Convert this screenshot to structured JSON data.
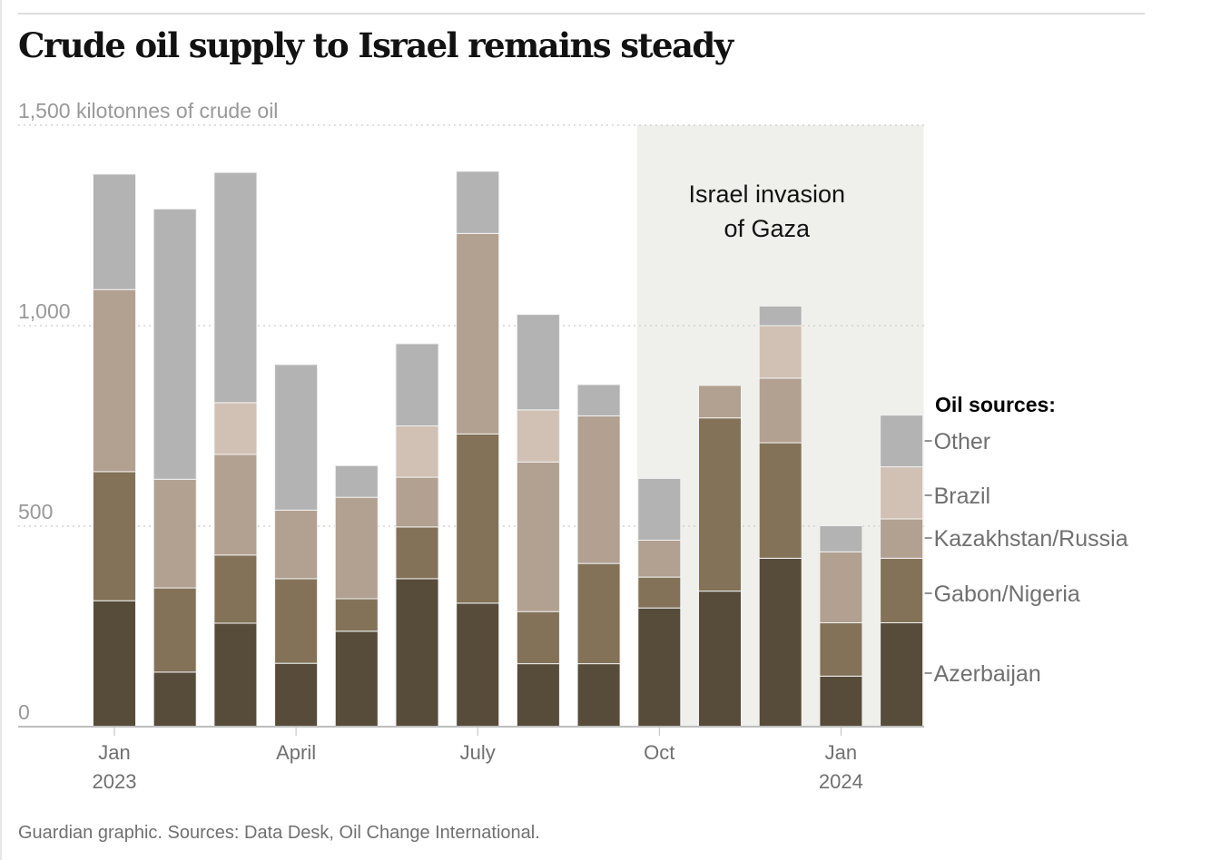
{
  "header": {
    "title": "Crude oil supply to Israel remains steady"
  },
  "footer": {
    "source": "Guardian graphic. Sources: Data Desk, Oil Change International."
  },
  "chart_data": {
    "type": "bar",
    "stacked": true,
    "title": "Crude oil supply to Israel remains steady",
    "ylabel": "kilotonnes of crude oil",
    "y_unit_label": "1,500 kilotonnes of crude oil",
    "ylim": [
      0,
      1500
    ],
    "yticks": [
      {
        "value": 0,
        "label": "0"
      },
      {
        "value": 500,
        "label": "500"
      },
      {
        "value": 1000,
        "label": "1,000"
      },
      {
        "value": 1500,
        "label": "1,500 kilotonnes of crude oil"
      }
    ],
    "grid": true,
    "categories": [
      "Jan 2023",
      "Feb 2023",
      "Mar 2023",
      "Apr 2023",
      "May 2023",
      "Jun 2023",
      "Jul 2023",
      "Aug 2023",
      "Sep 2023",
      "Oct 2023",
      "Nov 2023",
      "Dec 2023",
      "Jan 2024",
      "Feb 2024"
    ],
    "xticks": [
      {
        "index": 0,
        "label": "Jan",
        "sublabel": "2023"
      },
      {
        "index": 3,
        "label": "April",
        "sublabel": ""
      },
      {
        "index": 6,
        "label": "July",
        "sublabel": ""
      },
      {
        "index": 9,
        "label": "Oct",
        "sublabel": ""
      },
      {
        "index": 12,
        "label": "Jan",
        "sublabel": "2024"
      }
    ],
    "series": [
      {
        "name": "Azerbaijan",
        "color": "#574b3a",
        "values": [
          314,
          136,
          258,
          158,
          238,
          369,
          308,
          157,
          157,
          296,
          338,
          420,
          126,
          259
        ]
      },
      {
        "name": "Gabon/Nigeria",
        "color": "#837258",
        "values": [
          322,
          210,
          170,
          211,
          81,
          129,
          422,
          130,
          250,
          77,
          432,
          288,
          133,
          161
        ]
      },
      {
        "name": "Kazakhstan/Russia",
        "color": "#b2a090",
        "values": [
          454,
          271,
          251,
          171,
          253,
          124,
          500,
          373,
          368,
          92,
          81,
          161,
          177,
          98
        ]
      },
      {
        "name": "Brazil",
        "color": "#d0c1b4",
        "values": [
          0,
          0,
          129,
          0,
          0,
          128,
          0,
          130,
          0,
          0,
          0,
          131,
          0,
          130
        ]
      },
      {
        "name": "Other",
        "color": "#b3b3b3",
        "values": [
          288,
          674,
          574,
          363,
          79,
          205,
          155,
          238,
          78,
          154,
          0,
          49,
          65,
          129
        ]
      }
    ],
    "legend": {
      "title": "Oil sources:",
      "placement": "right",
      "order": [
        "Other",
        "Brazil",
        "Kazakhstan/Russia",
        "Gabon/Nigeria",
        "Azerbaijan"
      ]
    },
    "annotations": [
      {
        "text_lines": [
          "Israel invasion",
          "of Gaza"
        ],
        "start_index": 9,
        "end_index": 13,
        "shade_color": "#efefeb"
      }
    ]
  }
}
